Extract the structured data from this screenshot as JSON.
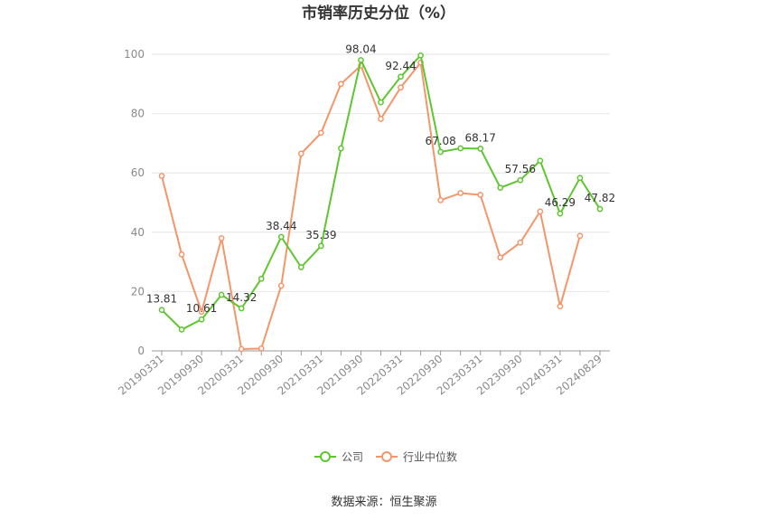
{
  "chart_data": {
    "type": "line",
    "title": "市销率历史分位（%）",
    "x": [
      "20190331",
      "20190630",
      "20190930",
      "20191231",
      "20200331",
      "20200630",
      "20200930",
      "20201231",
      "20210331",
      "20210630",
      "20210930",
      "20211231",
      "20220331",
      "20220630",
      "20220930",
      "20221231",
      "20230331",
      "20230630",
      "20230930",
      "20231231",
      "20240331",
      "20240630",
      "20240829"
    ],
    "x_tick_labels": [
      "20190331",
      "20190930",
      "20200331",
      "20200930",
      "20210331",
      "20210930",
      "20220331",
      "20220930",
      "20230331",
      "20230930",
      "20240331",
      "20240829"
    ],
    "ylim": [
      0,
      100
    ],
    "y_ticks": [
      0,
      20,
      40,
      60,
      80,
      100
    ],
    "grid": true,
    "legend_position": "bottom",
    "series": [
      {
        "name": "公司",
        "color": "#5ec62e",
        "values": [
          13.81,
          7.2,
          10.61,
          18.9,
          14.32,
          24.3,
          38.44,
          28.2,
          35.39,
          68.3,
          98.04,
          83.8,
          92.44,
          99.6,
          67.08,
          68.3,
          68.17,
          55.0,
          57.56,
          64.1,
          46.29,
          58.3,
          47.82
        ],
        "data_labels": {
          "0": "13.81",
          "2": "10.61",
          "4": "14.32",
          "6": "38.44",
          "8": "35.39",
          "10": "98.04",
          "12": "92.44",
          "14": "67.08",
          "16": "68.17",
          "18": "57.56",
          "20": "46.29",
          "22": "47.82"
        }
      },
      {
        "name": "行业中位数",
        "color": "#f4956a",
        "values": [
          59.0,
          32.5,
          13.2,
          38.0,
          0.6,
          0.8,
          22.0,
          66.5,
          73.5,
          90.0,
          96.2,
          78.2,
          88.8,
          97.2,
          50.8,
          53.2,
          52.6,
          31.5,
          36.5,
          47.0,
          15.0,
          38.8,
          null
        ]
      }
    ]
  },
  "source_text": "数据来源：恒生聚源"
}
